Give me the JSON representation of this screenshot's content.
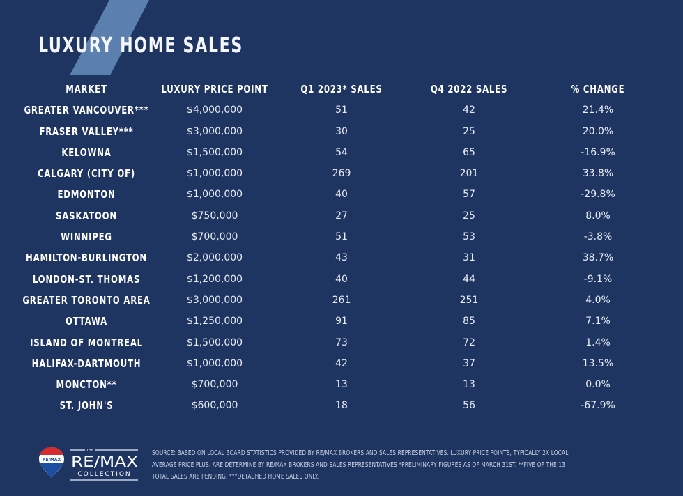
{
  "title": "LUXURY HOME SALES",
  "colors": {
    "background": "#1f3561",
    "stripe": "#5b80b0",
    "text": "#ffffff"
  },
  "chart_data": {
    "type": "table",
    "title": "LUXURY HOME SALES",
    "columns": [
      "MARKET",
      "LUXURY PRICE POINT",
      "Q1 2023* SALES",
      "Q4 2022 SALES",
      "% CHANGE"
    ],
    "rows": [
      [
        "GREATER VANCOUVER***",
        "$4,000,000",
        "51",
        "42",
        "21.4%"
      ],
      [
        "FRASER VALLEY***",
        "$3,000,000",
        "30",
        "25",
        "20.0%"
      ],
      [
        "KELOWNA",
        "$1,500,000",
        "54",
        "65",
        "-16.9%"
      ],
      [
        "CALGARY (CITY OF)",
        "$1,000,000",
        "269",
        "201",
        "33.8%"
      ],
      [
        "EDMONTON",
        "$1,000,000",
        "40",
        "57",
        "-29.8%"
      ],
      [
        "SASKATOON",
        "$750,000",
        "27",
        "25",
        "8.0%"
      ],
      [
        "WINNIPEG",
        "$700,000",
        "51",
        "53",
        "-3.8%"
      ],
      [
        "HAMILTON-BURLINGTON",
        "$2,000,000",
        "43",
        "31",
        "38.7%"
      ],
      [
        "LONDON-ST. THOMAS",
        "$1,200,000",
        "40",
        "44",
        "-9.1%"
      ],
      [
        "GREATER TORONTO AREA",
        "$3,000,000",
        "261",
        "251",
        "4.0%"
      ],
      [
        "OTTAWA",
        "$1,250,000",
        "91",
        "85",
        "7.1%"
      ],
      [
        "ISLAND OF MONTREAL",
        "$1,500,000",
        "73",
        "72",
        "1.4%"
      ],
      [
        "HALIFAX-DARTMOUTH",
        "$1,000,000",
        "42",
        "37",
        "13.5%"
      ],
      [
        "MONCTON**",
        "$700,000",
        "13",
        "13",
        "0.0%"
      ],
      [
        "ST. JOHN'S",
        "$600,000",
        "18",
        "56",
        "-67.9%"
      ]
    ]
  },
  "footer": {
    "lines": [
      "SOURCE: BASED ON LOCAL BOARD STATISTICS PROVIDED BY RE/MAX BROKERS AND SALES REPRESENTATIVES. LUXURY PRICE POINTS, TYPICALLY 2X LOCAL",
      "AVERAGE PRICE PLUS, ARE DETERMINE BY RE/MAX BROKERS AND SALES REPRESENTATIVES *PRELIMINARY FIGURES AS OF MARCH 31ST. **FIVE OF THE 13",
      "TOTAL SALES ARE PENDING. ***DETACHED HOME SALES ONLY."
    ]
  },
  "logo": {
    "the": "THE",
    "brand": "RE/MAX",
    "sub": "COLLECTION",
    "balloon": "RE/MAX"
  }
}
